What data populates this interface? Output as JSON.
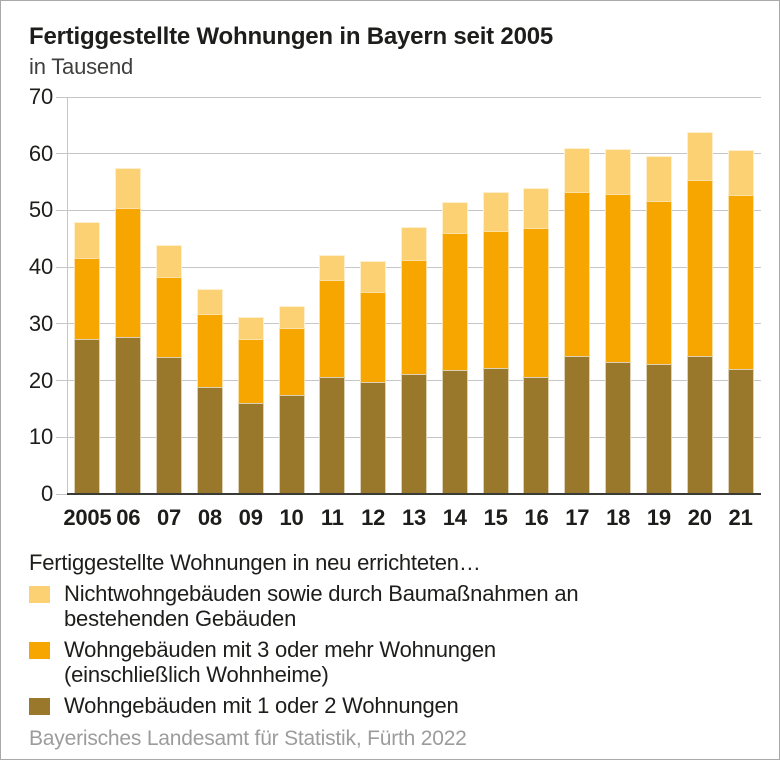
{
  "header": {
    "title": "Fertiggestellte Wohnungen in Bayern seit 2005",
    "subtitle": "in Tausend"
  },
  "chart_data": {
    "type": "bar",
    "stacked": true,
    "title": "Fertiggestellte Wohnungen in Bayern seit 2005",
    "ylabel": "in Tausend",
    "xlabel": "",
    "categories": [
      "2005",
      "06",
      "07",
      "08",
      "09",
      "10",
      "11",
      "12",
      "13",
      "14",
      "15",
      "16",
      "17",
      "18",
      "19",
      "20",
      "21"
    ],
    "series": [
      {
        "name": "Wohngebäuden mit 1 oder 2 Wohnungen",
        "color": "#9A782B",
        "values": [
          27.3,
          27.7,
          24.2,
          18.8,
          16.0,
          17.5,
          20.6,
          19.7,
          21.2,
          21.9,
          22.2,
          20.6,
          24.4,
          23.2,
          23.0,
          24.4,
          22.0
        ]
      },
      {
        "name": "Wohngebäuden mit 3 oder mehr Wohnungen (einschließlich Wohnheime)",
        "color": "#F7A600",
        "values": [
          14.4,
          22.8,
          14.0,
          13.0,
          11.3,
          11.8,
          17.1,
          15.9,
          20.0,
          24.1,
          24.2,
          26.3,
          28.9,
          29.7,
          28.6,
          30.9,
          30.8
        ]
      },
      {
        "name": "Nichtwohngebäuden sowie durch Baumaßnahmen an bestehenden Gebäuden",
        "color": "#FCD173",
        "values": [
          6.3,
          6.9,
          5.7,
          4.4,
          4.0,
          3.8,
          4.4,
          5.4,
          5.8,
          5.5,
          6.9,
          7.0,
          7.7,
          7.9,
          8.0,
          8.6,
          7.9
        ]
      }
    ],
    "totals": [
      48.0,
      57.4,
      43.9,
      36.2,
      31.3,
      33.1,
      42.1,
      41.0,
      47.0,
      51.5,
      53.3,
      53.9,
      61.0,
      60.8,
      59.6,
      63.9,
      60.7
    ],
    "ylim": [
      0,
      70
    ],
    "yticks": [
      0,
      10,
      20,
      30,
      40,
      50,
      60,
      70
    ],
    "grid": true,
    "legend_position": "bottom"
  },
  "legend": {
    "intro": "Fertiggestellte Wohnungen in neu errichteten…",
    "items": [
      {
        "color": "#FCD173",
        "lines": [
          "Nichtwohngebäuden sowie durch Baumaßnahmen an",
          "bestehenden Gebäuden"
        ]
      },
      {
        "color": "#F7A600",
        "lines": [
          "Wohngebäuden mit 3 oder mehr Wohnungen",
          "(einschließlich Wohnheime)"
        ]
      },
      {
        "color": "#9A782B",
        "lines": [
          "Wohngebäuden mit 1 oder 2 Wohnungen"
        ]
      }
    ]
  },
  "footer": {
    "source": "Bayerisches Landesamt für Statistik, Fürth 2022"
  },
  "colors": {
    "grid": "#C6C6C6",
    "axis": "#3A3A36",
    "text": "#1D1D1B",
    "muted_text": "#9C9C9C",
    "frame_border": "#A9A9A9"
  }
}
